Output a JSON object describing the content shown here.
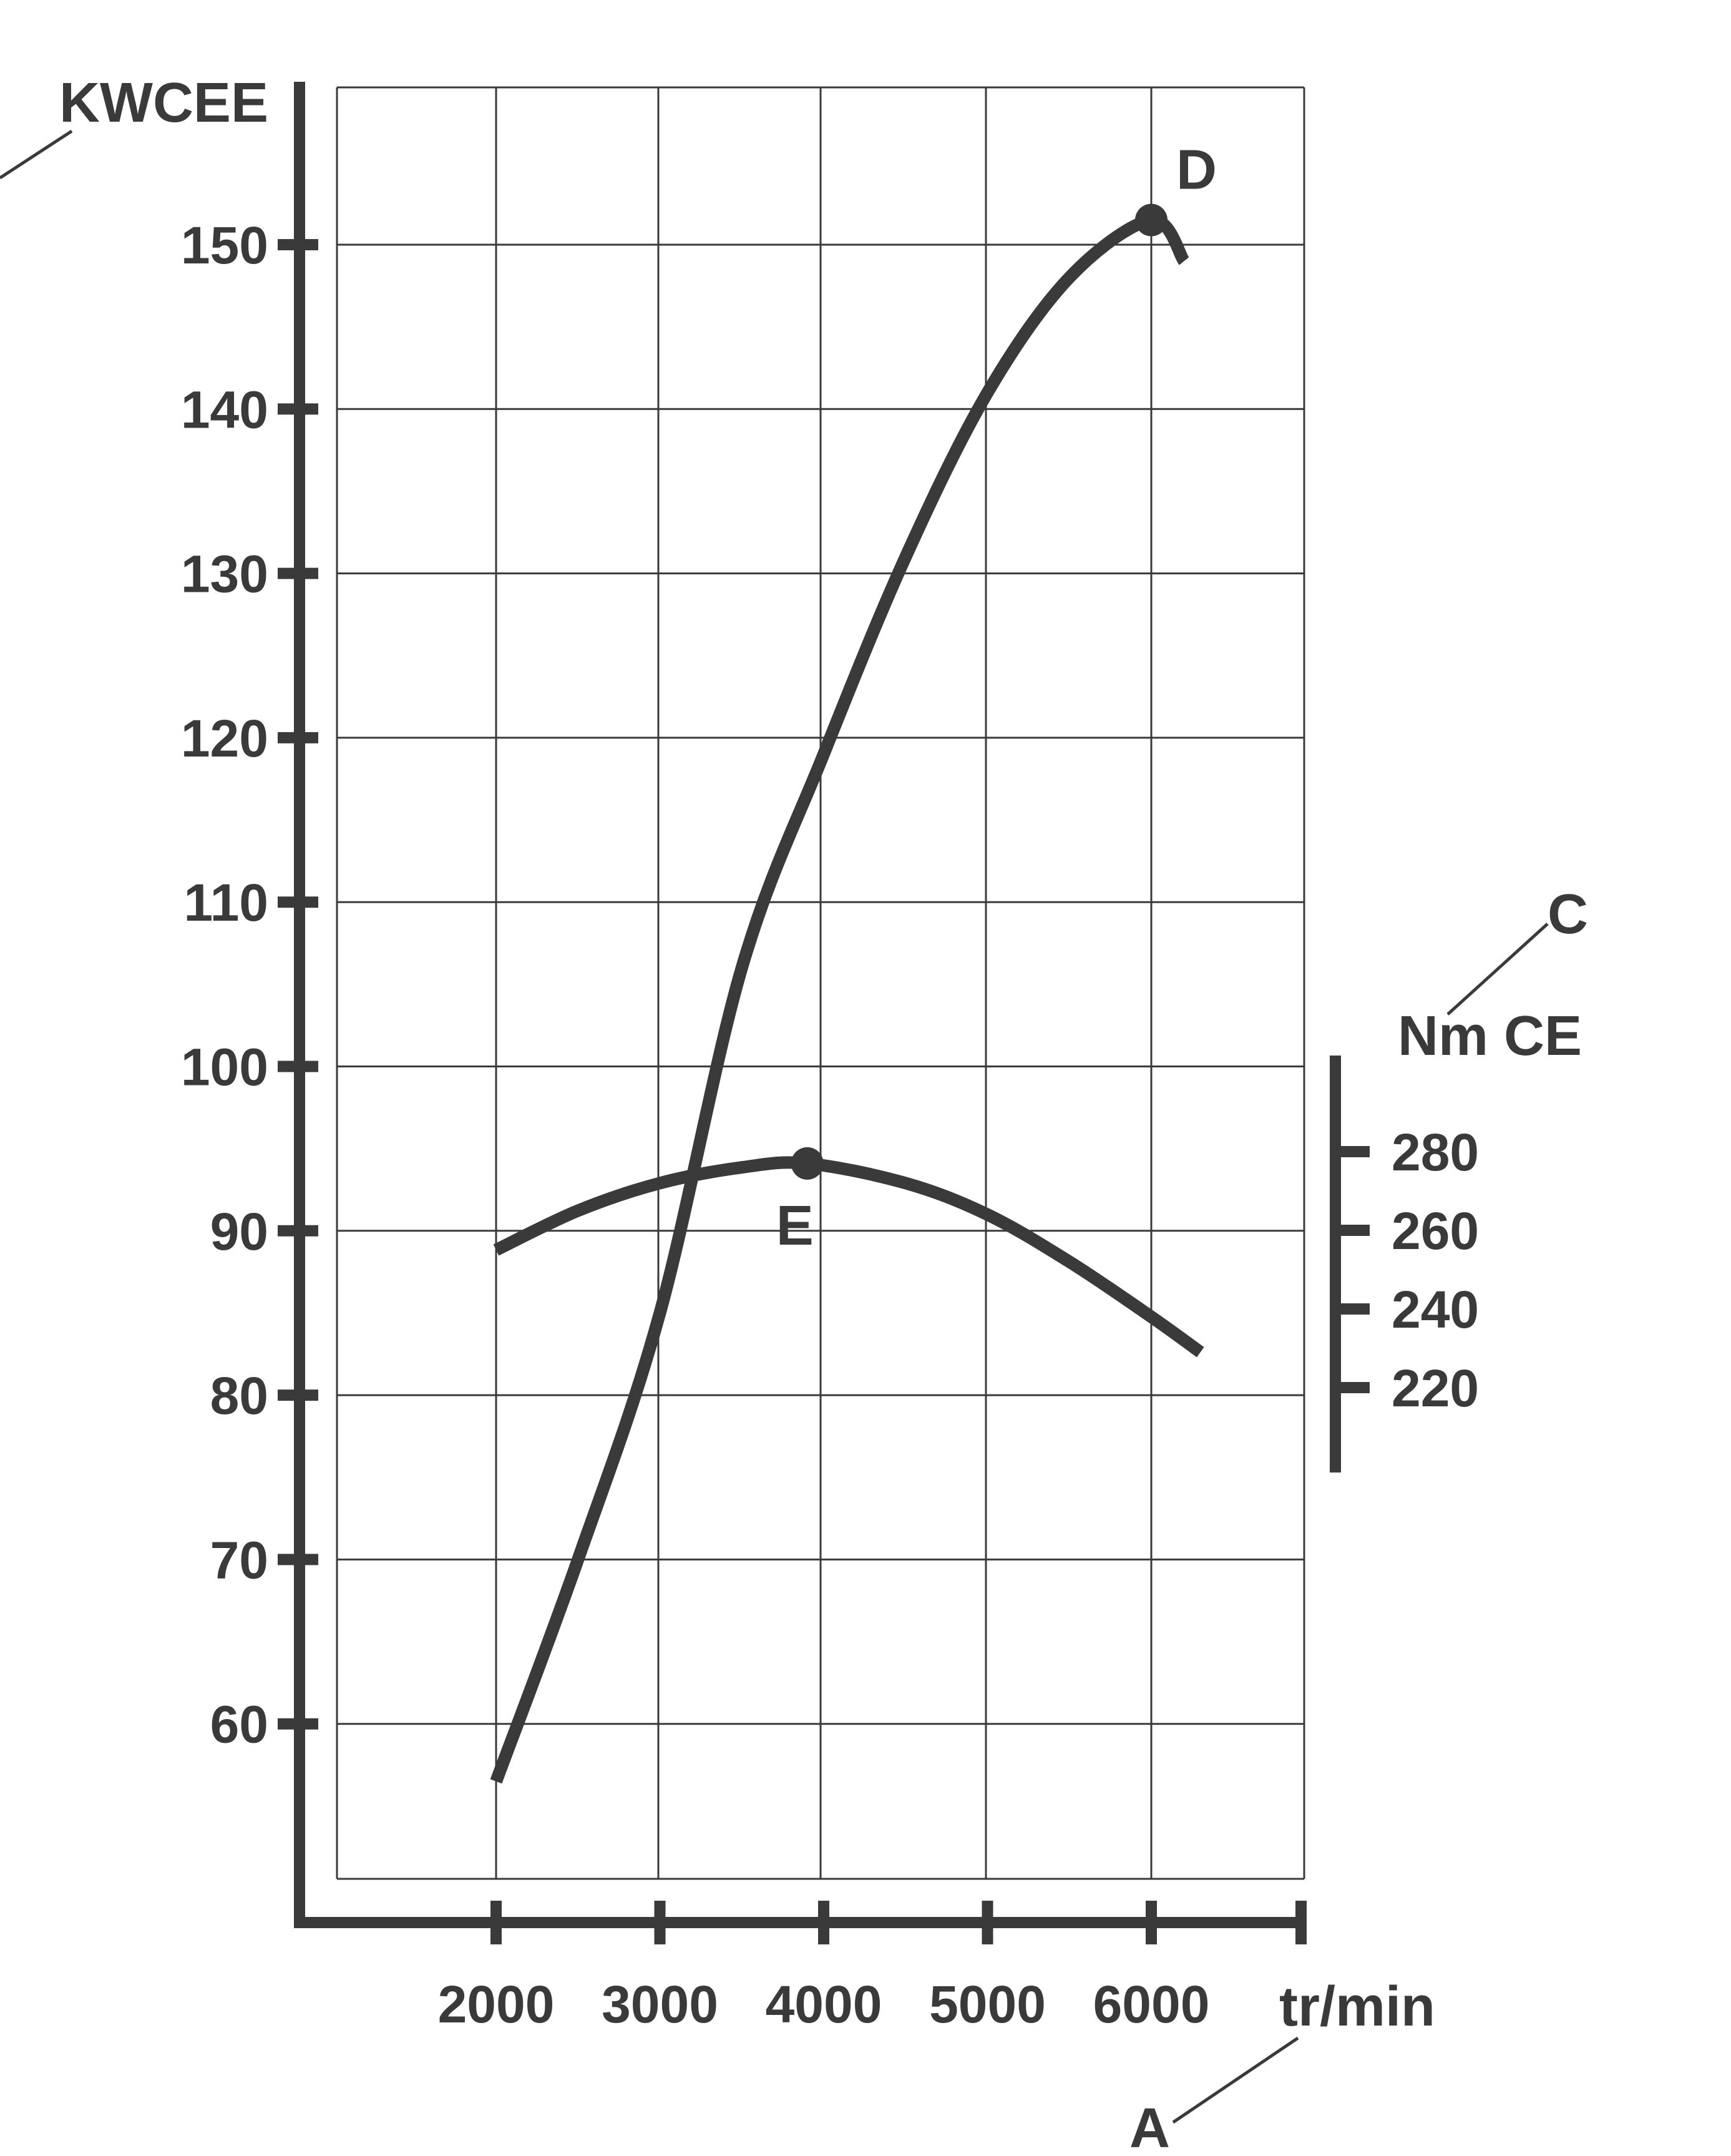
{
  "chart_data": {
    "type": "line",
    "x_unit_label": "tr/min",
    "y_left_label": "KWCEE",
    "y_right_label": "Nm CE",
    "x_ticks": [
      2000,
      3000,
      4000,
      5000,
      6000
    ],
    "y_left_ticks": [
      60,
      70,
      80,
      90,
      100,
      110,
      120,
      130,
      140,
      150
    ],
    "y_right_ticks": [
      220,
      240,
      260,
      280
    ],
    "grid": true,
    "annotations": {
      "power_peak": "D",
      "torque_peak": "E",
      "torque_axis_callout": "C",
      "x_axis_callout": "A"
    },
    "series": [
      {
        "axis": "left",
        "x": [
          2000,
          2500,
          3000,
          3500,
          4000,
          4500,
          5000,
          5500,
          6000,
          6200
        ],
        "y": [
          56.5,
          70,
          85,
          106,
          119,
          131,
          141,
          148,
          151.5,
          149
        ]
      },
      {
        "axis": "right",
        "x": [
          2000,
          2500,
          3000,
          3500,
          3900,
          4500,
          5000,
          5500,
          6000,
          6300
        ],
        "y": [
          255,
          265,
          272,
          276,
          277,
          272,
          264,
          252,
          238,
          229
        ]
      }
    ]
  }
}
